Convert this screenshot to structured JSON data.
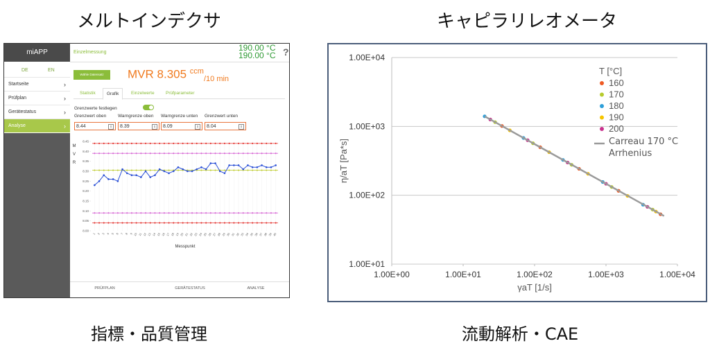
{
  "headings": {
    "left": "メルトインデクサ",
    "right": "キャピラリレオメータ"
  },
  "captions": {
    "left": "指標・品質管理",
    "right": "流動解析・CAE"
  },
  "app": {
    "brand": "miAPP",
    "languages": [
      "DE",
      "EN"
    ],
    "menu": [
      "Startseite",
      "Prüfplan",
      "Gerätestatus",
      "Analyse"
    ],
    "page_title": "Einzelmessung",
    "temperatures": [
      "190.00 °C",
      "190.00 °C"
    ],
    "help": "?",
    "button": "Wähle Datensatz",
    "mvr": {
      "label": "MVR",
      "value": 8.305,
      "unit": "ccm",
      "per": "/10 min"
    },
    "tabs": [
      "Statistik",
      "Grafik",
      "Einzelwerte",
      "Prüfparameter"
    ],
    "toggle_label": "Grenzwerte festlegen",
    "limits": [
      {
        "label": "Grenzwert oben",
        "value": 8.44
      },
      {
        "label": "Warngrenze oben",
        "value": 8.39
      },
      {
        "label": "Warngrenze unten",
        "value": 8.09
      },
      {
        "label": "Grenzwert unten",
        "value": 8.04
      }
    ],
    "footer": [
      "PRÜFPLAN",
      "GERÄTESTATUS",
      "ANALYSE"
    ]
  },
  "chart_data": [
    {
      "type": "line",
      "ylabel_letters": [
        "M",
        "V",
        "R"
      ],
      "xlabel": "Messpunkt",
      "categories": [
        "1",
        "2",
        "3",
        "4",
        "5",
        "6",
        "7",
        "8",
        "9",
        "10",
        "11",
        "12",
        "13",
        "14",
        "15",
        "16",
        "17",
        "18",
        "19",
        "20",
        "21",
        "22",
        "23",
        "24",
        "25",
        "26",
        "27",
        "28",
        "29",
        "30",
        "31",
        "32",
        "33",
        "34",
        "35",
        "36",
        "37",
        "38",
        "39",
        "40"
      ],
      "values": [
        8.23,
        8.25,
        8.28,
        8.26,
        8.26,
        8.25,
        8.31,
        8.29,
        8.28,
        8.28,
        8.27,
        8.3,
        8.27,
        8.28,
        8.31,
        8.3,
        8.29,
        8.3,
        8.32,
        8.31,
        8.3,
        8.3,
        8.31,
        8.32,
        8.31,
        8.34,
        8.34,
        8.3,
        8.29,
        8.33,
        8.33,
        8.33,
        8.31,
        8.33,
        8.32,
        8.32,
        8.33,
        8.32,
        8.32,
        8.33
      ],
      "color": "#2a4fd6",
      "limit_colors": [
        "#e53935",
        "#d86ad6",
        "#d86ad6",
        "#e53935"
      ],
      "mean_color": "#c3cf3c",
      "ylim": [
        8.0,
        8.45
      ],
      "yticks": [
        {
          "value": 8.0,
          "label": "8.00"
        },
        8.05,
        {
          "value": 8.1,
          "label": "8.10"
        },
        8.15,
        {
          "value": 8.2,
          "label": "8.20"
        },
        8.25,
        {
          "value": 8.3,
          "label": "8.30"
        },
        8.35,
        {
          "value": 8.4,
          "label": "8.40"
        },
        8.45
      ]
    },
    {
      "type": "scatter",
      "log_x": true,
      "log_y": true,
      "grid": "y",
      "xlabel": "γaT [1/s]",
      "ylabel": "η/aT [Pa*s]",
      "xlim": [
        1,
        10000
      ],
      "ylim": [
        10,
        10000
      ],
      "xticks": [
        {
          "value": 1,
          "label": "1.00E+00"
        },
        {
          "value": 10,
          "label": "1.00E+01"
        },
        {
          "value": 100,
          "label": "1.00E+02"
        },
        {
          "value": 1000,
          "label": "1.00E+03"
        },
        {
          "value": 10000,
          "label": "1.00E+04"
        }
      ],
      "yticks": [
        {
          "value": 10,
          "label": "1.00E+01"
        },
        {
          "value": 100,
          "label": "1.00E+02"
        },
        {
          "value": 1000,
          "label": "1.00E+03"
        },
        {
          "value": 10000,
          "label": "1.00E+04"
        }
      ],
      "legend_title": "T [°C]",
      "series": [
        {
          "name": "160",
          "color": "#ee5a24",
          "x": [
            35,
            120,
            420,
            1500,
            5800
          ],
          "values": [
            1014,
            498,
            242,
            116,
            53
          ]
        },
        {
          "name": "170",
          "color": "#b7cb2e",
          "x": [
            28,
            95,
            330,
            1200,
            4500
          ],
          "values": [
            1153,
            569,
            277,
            132,
            62
          ]
        },
        {
          "name": "180",
          "color": "#2e9fd9",
          "x": [
            20,
            70,
            250,
            900,
            3300
          ],
          "values": [
            1400,
            679,
            326,
            156,
            73
          ]
        },
        {
          "name": "190",
          "color": "#f6c500",
          "x": [
            45,
            160,
            560,
            2000,
            5000
          ],
          "values": [
            877,
            422,
            205,
            98,
            58
          ]
        },
        {
          "name": "200",
          "color": "#c9328e",
          "x": [
            24,
            80,
            290,
            1000,
            3800
          ],
          "values": [
            1259,
            630,
            299,
            147,
            68
          ]
        },
        {
          "name": "Carreau 170 °C\nArrhenius",
          "color": "#9a9a9a",
          "type": "line",
          "x": [
            20,
            100,
            1000,
            6500
          ],
          "values": [
            1400,
            553,
            147,
            50
          ]
        }
      ]
    }
  ]
}
